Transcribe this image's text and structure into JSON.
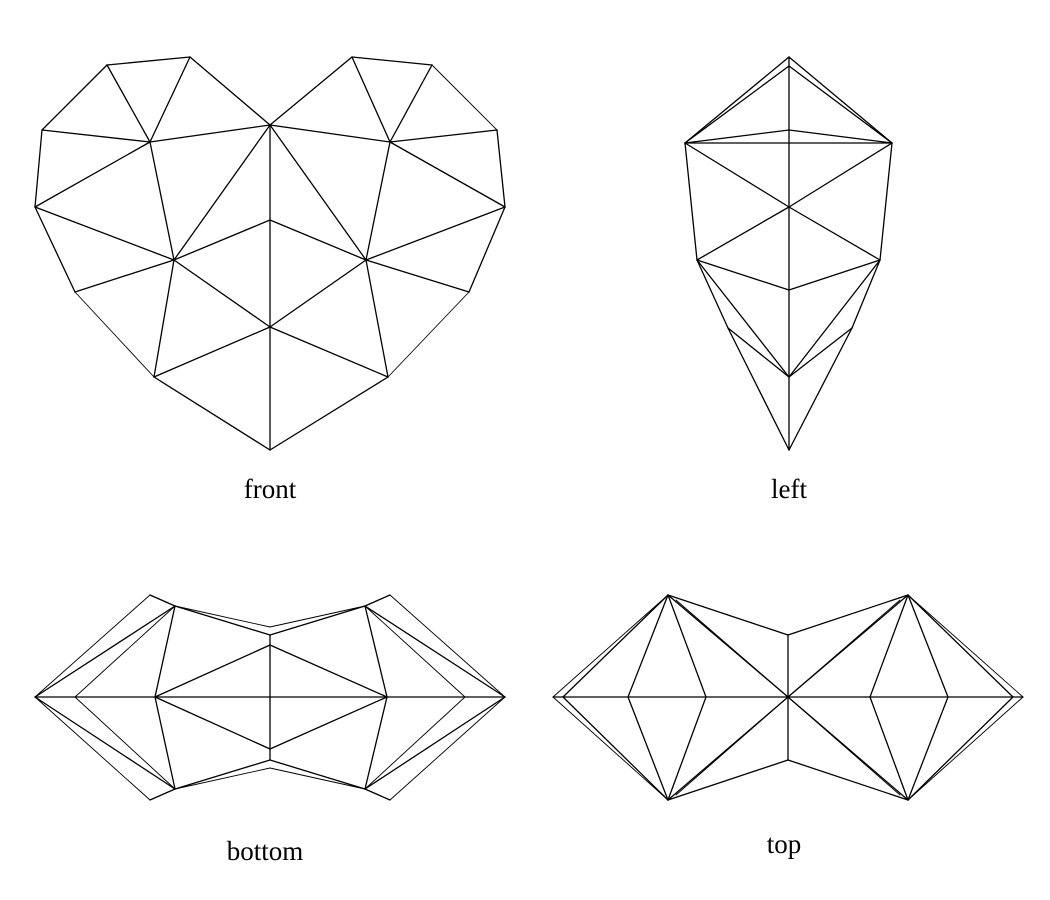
{
  "views": [
    {
      "id": "front",
      "label": "front"
    },
    {
      "id": "left",
      "label": "left"
    },
    {
      "id": "bottom",
      "label": "bottom"
    },
    {
      "id": "top",
      "label": "top"
    }
  ],
  "colors": {
    "stroke": "#000000",
    "background": "#ffffff"
  }
}
